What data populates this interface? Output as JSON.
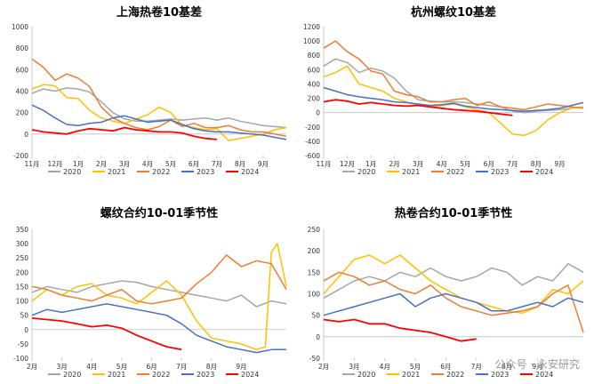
{
  "palette": {
    "2020": "#a6a6a6",
    "2021": "#ffc000",
    "2022": "#ed7d31",
    "2023": "#4472c4",
    "2024": "#ff0000"
  },
  "watermark": "公众号 · 永安研究",
  "chart_data": [
    {
      "type": "line",
      "title": "上海热卷10基差",
      "ylim": [
        -200,
        1000
      ],
      "yticks": [
        -200,
        0,
        200,
        400,
        600,
        800,
        1000
      ],
      "xlim": [
        0,
        11
      ],
      "x_ticks": [
        0,
        1,
        2,
        3,
        4,
        5,
        6,
        7,
        8,
        9,
        10
      ],
      "x_tick_labels": [
        "11月",
        "12月",
        "1月",
        "2月",
        "3月",
        "4月",
        "5月",
        "6月",
        "7月",
        "8月",
        "9月"
      ],
      "legend": "bottom",
      "series": [
        {
          "name": "2020",
          "x": [
            0,
            0.5,
            1,
            1.5,
            2,
            2.5,
            3,
            3.5,
            4,
            4.5,
            5,
            5.5,
            6,
            6.5,
            7,
            7.5,
            8,
            8.5,
            9,
            9.5,
            10,
            10.5,
            11
          ],
          "y": [
            380,
            420,
            400,
            430,
            420,
            390,
            300,
            200,
            140,
            120,
            120,
            130,
            140,
            130,
            140,
            150,
            130,
            150,
            120,
            100,
            80,
            70,
            60
          ]
        },
        {
          "name": "2021",
          "x": [
            0,
            0.5,
            1,
            1.5,
            2,
            2.5,
            3,
            3.5,
            4,
            4.5,
            5,
            5.5,
            6,
            6.5,
            7,
            7.5,
            8,
            8.5,
            9,
            9.5,
            10,
            10.5,
            11
          ],
          "y": [
            420,
            460,
            450,
            340,
            330,
            220,
            150,
            120,
            100,
            140,
            180,
            250,
            200,
            80,
            60,
            40,
            50,
            -60,
            -40,
            -20,
            0,
            40,
            60
          ]
        },
        {
          "name": "2022",
          "x": [
            0,
            0.5,
            1,
            1.5,
            2,
            2.5,
            3,
            3.5,
            4,
            4.5,
            5,
            5.5,
            6,
            6.5,
            7,
            7.5,
            8,
            8.5,
            9,
            9.5,
            10,
            10.5,
            11
          ],
          "y": [
            700,
            620,
            500,
            560,
            520,
            440,
            250,
            150,
            100,
            60,
            40,
            70,
            130,
            70,
            100,
            60,
            60,
            80,
            40,
            20,
            20,
            0,
            -20
          ]
        },
        {
          "name": "2023",
          "x": [
            0,
            0.5,
            1,
            1.5,
            2,
            2.5,
            3,
            3.5,
            4,
            4.5,
            5,
            5.5,
            6,
            6.5,
            7,
            7.5,
            8,
            8.5,
            9,
            9.5,
            10,
            10.5,
            11
          ],
          "y": [
            270,
            220,
            150,
            90,
            80,
            100,
            110,
            150,
            170,
            140,
            110,
            120,
            130,
            90,
            50,
            30,
            20,
            20,
            10,
            0,
            -10,
            -30,
            -50
          ]
        },
        {
          "name": "2024",
          "x": [
            0,
            0.5,
            1,
            1.5,
            2,
            2.5,
            3,
            3.5,
            4,
            4.5,
            5,
            5.5,
            6,
            6.5,
            7,
            7.5,
            8
          ],
          "y": [
            40,
            20,
            10,
            0,
            30,
            50,
            40,
            30,
            60,
            40,
            30,
            20,
            20,
            10,
            -20,
            -40,
            -50
          ]
        }
      ]
    },
    {
      "type": "line",
      "title": "杭州螺纹10基差",
      "ylim": [
        -600,
        1200
      ],
      "yticks": [
        -600,
        -400,
        -200,
        0,
        200,
        400,
        600,
        800,
        1000,
        1200
      ],
      "xlim": [
        0,
        11
      ],
      "x_ticks": [
        0,
        1,
        2,
        3,
        4,
        5,
        6,
        7,
        8,
        9,
        10
      ],
      "x_tick_labels": [
        "11月",
        "12月",
        "1月",
        "2月",
        "3月",
        "4月",
        "5月",
        "6月",
        "7月",
        "8月",
        "9月"
      ],
      "legend": "bottom",
      "series": [
        {
          "name": "2020",
          "x": [
            0,
            0.5,
            1,
            1.5,
            2,
            2.5,
            3,
            3.5,
            4,
            4.5,
            5,
            5.5,
            6,
            6.5,
            7,
            7.5,
            8,
            8.5,
            9,
            9.5,
            10,
            10.5,
            11
          ],
          "y": [
            650,
            750,
            700,
            560,
            620,
            580,
            480,
            300,
            180,
            160,
            150,
            150,
            140,
            120,
            100,
            80,
            20,
            0,
            20,
            30,
            40,
            60,
            80
          ]
        },
        {
          "name": "2021",
          "x": [
            0,
            0.5,
            1,
            1.5,
            2,
            2.5,
            3,
            3.5,
            4,
            4.5,
            5,
            5.5,
            6,
            6.5,
            7,
            7.5,
            8,
            8.5,
            9,
            9.5,
            10,
            10.5,
            11
          ],
          "y": [
            500,
            560,
            650,
            400,
            350,
            300,
            200,
            150,
            100,
            80,
            100,
            120,
            80,
            40,
            0,
            -150,
            -300,
            -320,
            -250,
            -100,
            0,
            60,
            80
          ]
        },
        {
          "name": "2022",
          "x": [
            0,
            0.5,
            1,
            1.5,
            2,
            2.5,
            3,
            3.5,
            4,
            4.5,
            5,
            5.5,
            6,
            6.5,
            7,
            7.5,
            8,
            8.5,
            9,
            9.5,
            10,
            10.5,
            11
          ],
          "y": [
            900,
            1000,
            850,
            750,
            580,
            540,
            300,
            250,
            220,
            150,
            150,
            180,
            200,
            100,
            150,
            80,
            60,
            40,
            80,
            120,
            100,
            80,
            60
          ]
        },
        {
          "name": "2023",
          "x": [
            0,
            0.5,
            1,
            1.5,
            2,
            2.5,
            3,
            3.5,
            4,
            4.5,
            5,
            5.5,
            6,
            6.5,
            7,
            7.5,
            8,
            8.5,
            9,
            9.5,
            10,
            10.5,
            11
          ],
          "y": [
            350,
            300,
            250,
            220,
            200,
            180,
            150,
            140,
            120,
            100,
            110,
            130,
            90,
            70,
            50,
            40,
            30,
            20,
            30,
            40,
            60,
            100,
            140
          ]
        },
        {
          "name": "2024",
          "x": [
            0,
            0.5,
            1,
            1.5,
            2,
            2.5,
            3,
            3.5,
            4,
            4.5,
            5,
            5.5,
            6,
            6.5,
            7,
            7.5,
            8
          ],
          "y": [
            150,
            180,
            160,
            120,
            140,
            120,
            100,
            90,
            100,
            80,
            60,
            40,
            30,
            20,
            0,
            -20,
            -40
          ]
        }
      ]
    },
    {
      "type": "line",
      "title": "螺纹合约10-01季节性",
      "ylim": [
        -100,
        350
      ],
      "yticks": [
        -100,
        -50,
        0,
        50,
        100,
        150,
        200,
        250,
        300,
        350
      ],
      "xlim": [
        0,
        8.5
      ],
      "x_ticks": [
        0,
        1,
        2,
        3,
        4,
        5,
        6,
        7
      ],
      "x_tick_labels": [
        "2月",
        "3月",
        "4月",
        "5月",
        "6月",
        "7月",
        "8月",
        "9月"
      ],
      "legend": "bottom",
      "series": [
        {
          "name": "2020",
          "x": [
            0,
            0.5,
            1,
            1.5,
            2,
            2.5,
            3,
            3.5,
            4,
            4.5,
            5,
            5.5,
            6,
            6.5,
            7,
            7.5,
            8,
            8.5
          ],
          "y": [
            130,
            150,
            140,
            130,
            150,
            160,
            170,
            165,
            150,
            140,
            130,
            120,
            110,
            100,
            120,
            80,
            100,
            90
          ]
        },
        {
          "name": "2021",
          "x": [
            0,
            0.5,
            1,
            1.5,
            2,
            2.5,
            3,
            3.5,
            4,
            4.5,
            5,
            5.5,
            6,
            6.5,
            7,
            7.5,
            7.8,
            8,
            8.2,
            8.5
          ],
          "y": [
            100,
            140,
            120,
            150,
            160,
            120,
            110,
            90,
            130,
            170,
            120,
            30,
            -30,
            -40,
            -50,
            -70,
            -60,
            270,
            300,
            150
          ]
        },
        {
          "name": "2022",
          "x": [
            0,
            0.5,
            1,
            1.5,
            2,
            2.5,
            3,
            3.5,
            4,
            4.5,
            5,
            5.5,
            6,
            6.5,
            7,
            7.5,
            8,
            8.5
          ],
          "y": [
            150,
            140,
            120,
            110,
            100,
            120,
            140,
            100,
            90,
            100,
            110,
            160,
            200,
            260,
            220,
            240,
            230,
            140
          ]
        },
        {
          "name": "2023",
          "x": [
            0,
            0.5,
            1,
            1.5,
            2,
            2.5,
            3,
            3.5,
            4,
            4.5,
            5,
            5.5,
            6,
            6.5,
            7,
            7.5,
            8,
            8.5
          ],
          "y": [
            50,
            70,
            60,
            70,
            80,
            90,
            80,
            70,
            60,
            50,
            20,
            -20,
            -40,
            -60,
            -70,
            -80,
            -70,
            -70
          ]
        },
        {
          "name": "2024",
          "x": [
            0,
            0.5,
            1,
            1.5,
            2,
            2.5,
            3,
            3.5,
            4,
            4.5,
            5
          ],
          "y": [
            40,
            35,
            30,
            20,
            10,
            15,
            5,
            -20,
            -40,
            -60,
            -70
          ]
        }
      ]
    },
    {
      "type": "line",
      "title": "热卷合约10-01季节性",
      "ylim": [
        -50,
        250
      ],
      "yticks": [
        -50,
        0,
        50,
        100,
        150,
        200,
        250
      ],
      "xlim": [
        0,
        8.5
      ],
      "x_ticks": [
        0,
        1,
        2,
        3,
        4,
        5,
        6,
        7
      ],
      "x_tick_labels": [
        "2月",
        "3月",
        "4月",
        "5月",
        "6月",
        "7月",
        "8月",
        "9月"
      ],
      "legend": "bottom",
      "series": [
        {
          "name": "2020",
          "x": [
            0,
            0.5,
            1,
            1.5,
            2,
            2.5,
            3,
            3.5,
            4,
            4.5,
            5,
            5.5,
            6,
            6.5,
            7,
            7.5,
            8,
            8.5
          ],
          "y": [
            90,
            110,
            130,
            140,
            130,
            150,
            140,
            160,
            140,
            130,
            140,
            160,
            150,
            120,
            140,
            130,
            170,
            150
          ]
        },
        {
          "name": "2021",
          "x": [
            0,
            0.5,
            1,
            1.5,
            2,
            2.5,
            3,
            3.5,
            4,
            4.5,
            5,
            5.5,
            6,
            6.5,
            7,
            7.5,
            8,
            8.5
          ],
          "y": [
            100,
            140,
            180,
            190,
            170,
            190,
            160,
            130,
            110,
            90,
            80,
            70,
            60,
            55,
            70,
            110,
            100,
            130
          ]
        },
        {
          "name": "2022",
          "x": [
            0,
            0.5,
            1,
            1.5,
            2,
            2.5,
            3,
            3.5,
            4,
            4.5,
            5,
            5.5,
            6,
            6.5,
            7,
            7.5,
            8,
            8.5
          ],
          "y": [
            130,
            150,
            140,
            120,
            130,
            110,
            100,
            120,
            90,
            70,
            60,
            50,
            55,
            60,
            70,
            100,
            120,
            10
          ]
        },
        {
          "name": "2023",
          "x": [
            0,
            0.5,
            1,
            1.5,
            2,
            2.5,
            3,
            3.5,
            4,
            4.5,
            5,
            5.5,
            6,
            6.5,
            7,
            7.5,
            8,
            8.5
          ],
          "y": [
            50,
            60,
            70,
            80,
            90,
            100,
            70,
            90,
            100,
            90,
            80,
            60,
            60,
            70,
            80,
            70,
            90,
            80
          ]
        },
        {
          "name": "2024",
          "x": [
            0,
            0.5,
            1,
            1.5,
            2,
            2.5,
            3,
            3.5,
            4,
            4.5,
            5
          ],
          "y": [
            40,
            35,
            40,
            30,
            30,
            20,
            15,
            10,
            0,
            -10,
            -5
          ]
        }
      ]
    }
  ]
}
